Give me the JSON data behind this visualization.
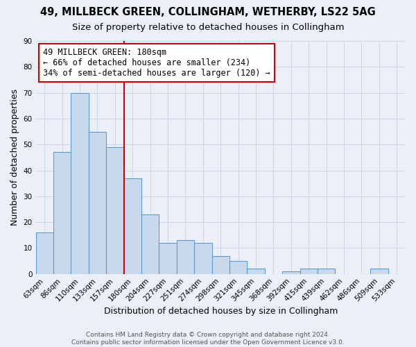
{
  "title1": "49, MILLBECK GREEN, COLLINGHAM, WETHERBY, LS22 5AG",
  "title2": "Size of property relative to detached houses in Collingham",
  "xlabel": "Distribution of detached houses by size in Collingham",
  "ylabel": "Number of detached properties",
  "bar_labels": [
    "63sqm",
    "86sqm",
    "110sqm",
    "133sqm",
    "157sqm",
    "180sqm",
    "204sqm",
    "227sqm",
    "251sqm",
    "274sqm",
    "298sqm",
    "321sqm",
    "345sqm",
    "368sqm",
    "392sqm",
    "415sqm",
    "439sqm",
    "462sqm",
    "486sqm",
    "509sqm",
    "533sqm"
  ],
  "bar_values": [
    16,
    47,
    70,
    55,
    49,
    37,
    23,
    12,
    13,
    12,
    7,
    5,
    2,
    0,
    1,
    2,
    2,
    0,
    0,
    2,
    0
  ],
  "bar_color": "#c9d9ec",
  "bar_edge_color": "#5b9bd5",
  "vline_color": "#cc0000",
  "annotation_text": "49 MILLBECK GREEN: 180sqm\n← 66% of detached houses are smaller (234)\n34% of semi-detached houses are larger (120) →",
  "annotation_box_color": "#ffffff",
  "annotation_box_edge_color": "#cc0000",
  "ylim": [
    0,
    90
  ],
  "yticks": [
    0,
    10,
    20,
    30,
    40,
    50,
    60,
    70,
    80,
    90
  ],
  "grid_color": "#cdd6e8",
  "background_color": "#eaeff8",
  "footer1": "Contains HM Land Registry data © Crown copyright and database right 2024.",
  "footer2": "Contains public sector information licensed under the Open Government Licence v3.0.",
  "title1_fontsize": 10.5,
  "title2_fontsize": 9.5,
  "xlabel_fontsize": 9,
  "ylabel_fontsize": 9,
  "tick_fontsize": 7.5,
  "annotation_fontsize": 8.5,
  "footer_fontsize": 6.5
}
